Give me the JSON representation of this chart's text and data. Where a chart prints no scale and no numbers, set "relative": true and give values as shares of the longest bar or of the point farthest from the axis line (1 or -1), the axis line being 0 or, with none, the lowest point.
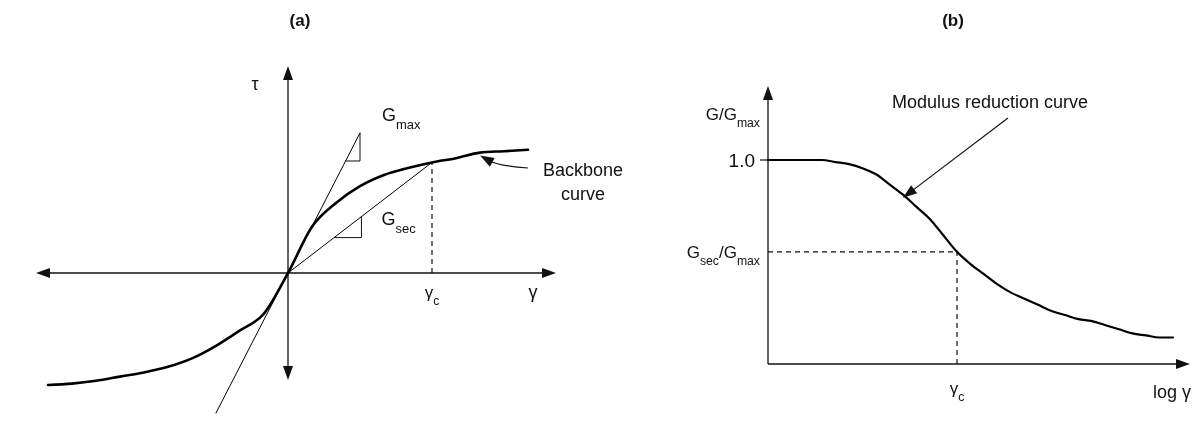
{
  "chart_data": [
    {
      "type": "line",
      "title": "(a)",
      "xlabel": "γ",
      "ylabel": "τ",
      "relative": true,
      "categories": [
        null,
        null,
        null,
        null,
        null,
        null,
        null,
        null,
        null,
        null,
        null,
        null,
        null,
        null,
        null,
        null,
        null,
        null,
        null,
        null,
        null
      ],
      "series": [
        {
          "name": "Backbone curve",
          "color": "#000000",
          "values": [
            -0.8,
            -0.79,
            -0.77,
            -0.74,
            -0.71,
            -0.67,
            -0.61,
            -0.52,
            -0.41,
            -0.29,
            0,
            0.33,
            0.5,
            0.62,
            0.7,
            0.75,
            0.79,
            0.82,
            0.86,
            0.87,
            0.88
          ]
        },
        {
          "name": "G$_{max}$",
          "color": "#000000",
          "values": [
            null,
            null,
            null,
            null,
            null,
            null,
            null,
            -1,
            null,
            null,
            0,
            null,
            null,
            1,
            null,
            null,
            null,
            null,
            null,
            null,
            null
          ]
        },
        {
          "name": "G$_{sec}$",
          "color": "#000000",
          "values": [
            null,
            null,
            null,
            null,
            null,
            null,
            null,
            null,
            null,
            null,
            0,
            null,
            null,
            null,
            null,
            null,
            0.79,
            null,
            null,
            null,
            null
          ]
        }
      ],
      "annotations": [
        "γ$_{c}$"
      ]
    },
    {
      "type": "line",
      "title": "(b)",
      "xlabel": "log γ",
      "ylabel": "G/G$_{max}$",
      "relative": true,
      "categories": [
        null,
        null,
        null,
        null,
        null,
        null,
        null,
        null,
        null,
        null,
        null,
        null,
        null,
        null,
        null,
        null,
        null,
        null,
        null,
        null,
        null,
        null,
        null,
        null,
        null,
        null,
        null,
        null,
        null,
        null,
        null
      ],
      "series": [
        {
          "name": "Modulus reduction curve",
          "color": "#000000",
          "values": [
            1,
            1,
            1,
            1,
            1,
            0.99,
            0.98,
            0.96,
            0.93,
            0.88,
            0.83,
            0.77,
            0.71,
            0.63,
            0.55,
            0.49,
            0.44,
            0.39,
            0.35,
            0.32,
            0.29,
            0.26,
            0.24,
            0.22,
            0.21,
            0.19,
            0.17,
            0.15,
            0.14,
            0.13,
            0.13
          ]
        }
      ],
      "ref_lines": [
        {
          "axis": "y",
          "value": 0.55,
          "label": "G$_{sec}$/G$_{max}$",
          "line_style": "dashed"
        }
      ],
      "annotations": [
        "1.0",
        "γ$_{c}$"
      ]
    }
  ]
}
